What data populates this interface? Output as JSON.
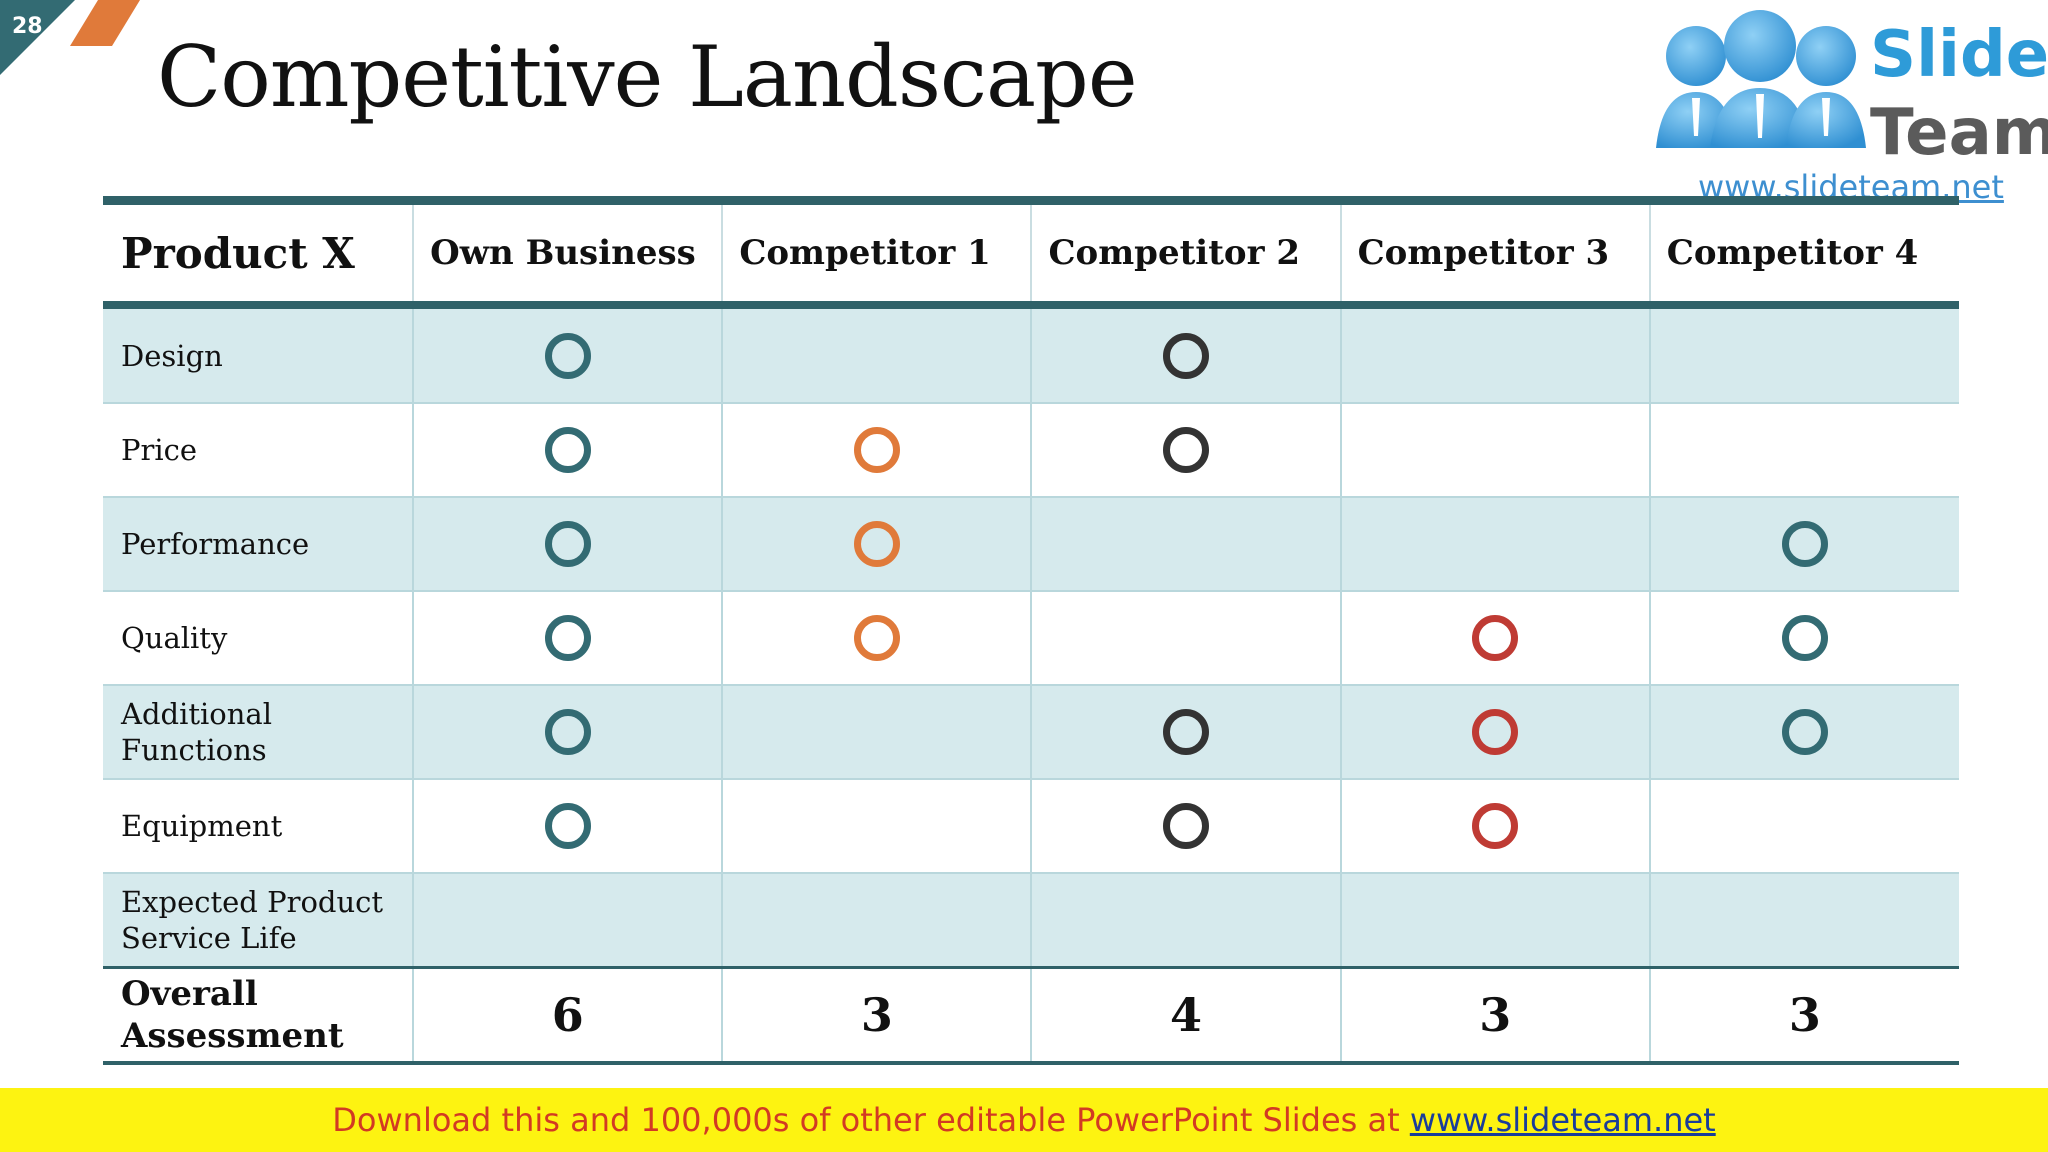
{
  "slide_number": "28",
  "title": "Competitive Landscape",
  "logo": {
    "line1": "Slide",
    "line2": "Team",
    "url": "www.slideteam.net"
  },
  "colors": {
    "teal": "#336b73",
    "orange": "#e07a3a",
    "dark": "#333333",
    "red": "#bf3b34"
  },
  "table": {
    "headers": [
      "Product X",
      "Own Business",
      "Competitor 1",
      "Competitor 2",
      "Competitor 3",
      "Competitor 4"
    ],
    "rows": [
      {
        "label": [
          "Design"
        ],
        "marks": [
          "teal",
          "",
          "dark",
          "",
          ""
        ]
      },
      {
        "label": [
          "Price"
        ],
        "marks": [
          "teal",
          "orange",
          "dark",
          "",
          ""
        ]
      },
      {
        "label": [
          "Performance"
        ],
        "marks": [
          "teal",
          "orange",
          "",
          "",
          "teal"
        ]
      },
      {
        "label": [
          "Quality"
        ],
        "marks": [
          "teal",
          "orange",
          "",
          "red",
          "teal"
        ]
      },
      {
        "label": [
          "Additional",
          "Functions"
        ],
        "marks": [
          "teal",
          "",
          "dark",
          "red",
          "teal"
        ]
      },
      {
        "label": [
          "Equipment"
        ],
        "marks": [
          "teal",
          "",
          "dark",
          "red",
          ""
        ]
      },
      {
        "label": [
          "Expected Product",
          "Service Life"
        ],
        "marks": [
          "",
          "",
          "",
          "",
          ""
        ]
      }
    ],
    "overall": {
      "label": [
        "Overall",
        "Assessment"
      ],
      "values": [
        "6",
        "3",
        "4",
        "3",
        "3"
      ]
    }
  },
  "banner": {
    "text": "Download this and 100,000s of other editable PowerPoint Slides at ",
    "link": "www.slideteam.net"
  }
}
